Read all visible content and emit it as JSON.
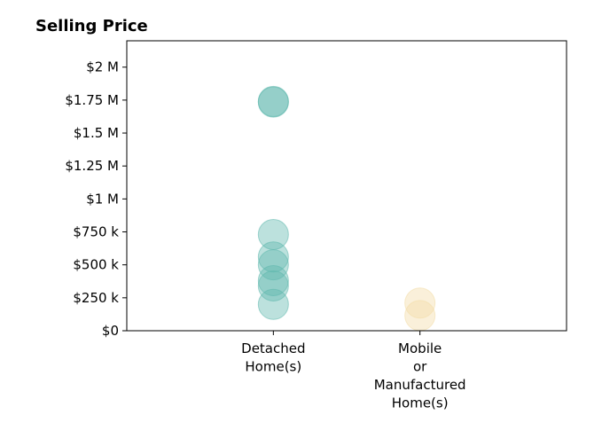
{
  "chart_data": {
    "type": "scatter",
    "title": "Selling Price",
    "xlabel": "",
    "ylabel": "",
    "categories": [
      "Detached\nHome(s)",
      "Mobile\nor\nManufactured\nHome(s)"
    ],
    "ylim": [
      0,
      2200000
    ],
    "xlim": [
      -1,
      2
    ],
    "grid": false,
    "yticks": [
      {
        "value": 0,
        "label": "$0"
      },
      {
        "value": 250000,
        "label": "$250 k"
      },
      {
        "value": 500000,
        "label": "$500 k"
      },
      {
        "value": 750000,
        "label": "$750 k"
      },
      {
        "value": 1000000,
        "label": "$1 M"
      },
      {
        "value": 1250000,
        "label": "$1.25 M"
      },
      {
        "value": 1500000,
        "label": "$1.5 M"
      },
      {
        "value": 1750000,
        "label": "$1.75 M"
      },
      {
        "value": 2000000,
        "label": "$2 M"
      }
    ],
    "series": [
      {
        "category": "Detached\nHome(s)",
        "color": "#5fb8ad",
        "values": [
          1740000,
          1735000,
          730000,
          560000,
          500000,
          380000,
          340000,
          200000
        ]
      },
      {
        "category": "Mobile\nor\nManufactured\nHome(s)",
        "color": "#f2dca6",
        "values": [
          210000,
          115000
        ]
      }
    ]
  }
}
